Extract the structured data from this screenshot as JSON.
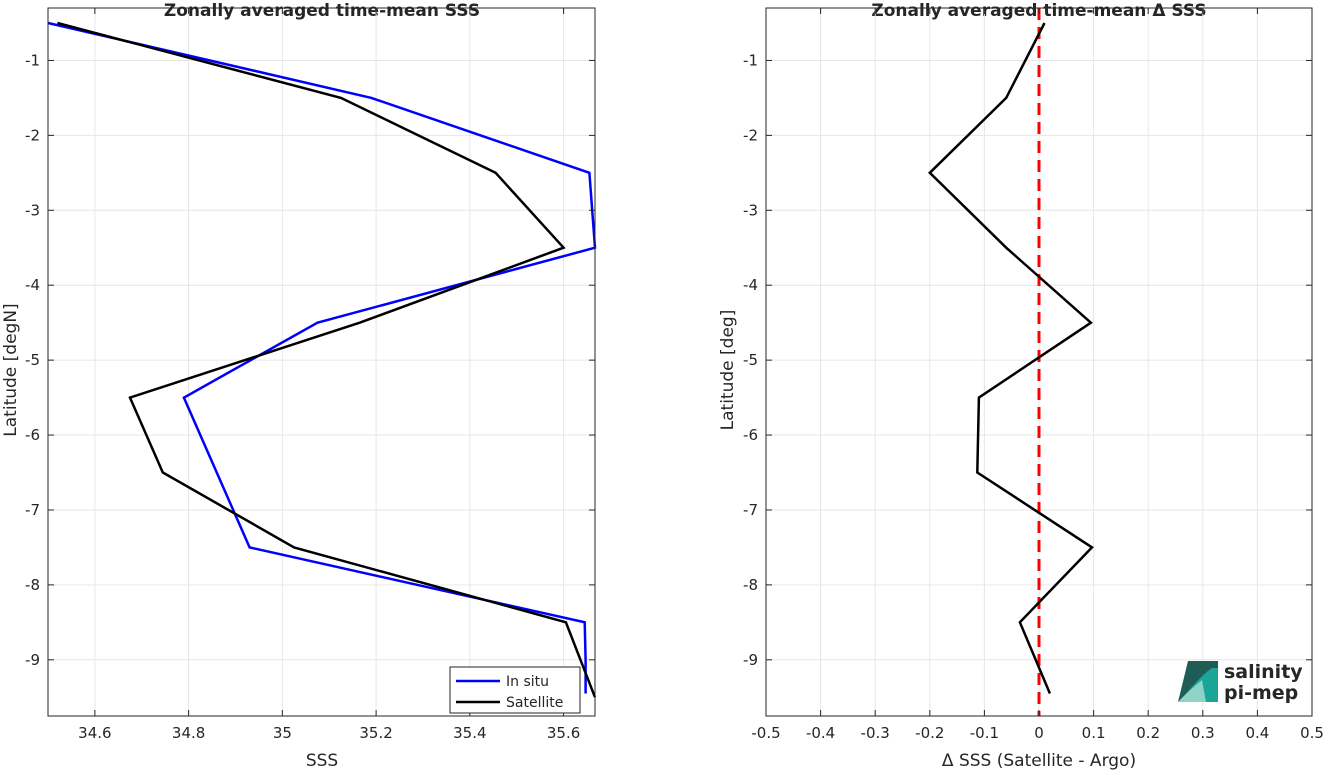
{
  "chart_data": [
    {
      "type": "line",
      "title": "Zonally averaged time-mean SSS",
      "xlabel": "SSS",
      "ylabel": "Latitude [degN]",
      "xlim": [
        34.5,
        35.667
      ],
      "ylim": [
        -9.75,
        -0.3
      ],
      "xticks": [
        "34.6",
        "34.8",
        "35",
        "35.2",
        "35.4",
        "35.6"
      ],
      "xtick_values": [
        34.6,
        34.8,
        35.0,
        35.2,
        35.4,
        35.6
      ],
      "yticks": [
        "-1",
        "-2",
        "-3",
        "-4",
        "-5",
        "-6",
        "-7",
        "-8",
        "-9"
      ],
      "ytick_values": [
        -1,
        -2,
        -3,
        -4,
        -5,
        -6,
        -7,
        -8,
        -9
      ],
      "grid": true,
      "legend_position": "bottom-right",
      "series": [
        {
          "name": "In situ",
          "color": "#0000ff",
          "x": [
            34.5,
            35.19,
            35.655,
            35.667,
            35.075,
            34.79,
            34.93,
            35.645,
            35.647,
            35.647
          ],
          "y": [
            -0.5,
            -1.5,
            -2.5,
            -3.5,
            -4.5,
            -5.5,
            -7.5,
            -8.5,
            -9.0,
            -9.45
          ]
        },
        {
          "name": "Satellite",
          "color": "#000000",
          "x": [
            34.52,
            35.125,
            35.455,
            35.6,
            35.165,
            34.675,
            34.745,
            35.025,
            35.605,
            35.667
          ],
          "y": [
            -0.5,
            -1.5,
            -2.5,
            -3.5,
            -4.5,
            -5.5,
            -6.5,
            -7.5,
            -8.5,
            -9.5
          ]
        }
      ]
    },
    {
      "type": "line",
      "title": "Zonally averaged time-mean Δ SSS",
      "xlabel": "Δ SSS (Satellite - Argo)",
      "ylabel": "Latitude [deg]",
      "xlim": [
        -0.5,
        0.5
      ],
      "ylim": [
        -9.75,
        -0.3
      ],
      "xticks": [
        "-0.5",
        "-0.4",
        "-0.3",
        "-0.2",
        "-0.1",
        "0",
        "0.1",
        "0.2",
        "0.3",
        "0.4",
        "0.5"
      ],
      "xtick_values": [
        -0.5,
        -0.4,
        -0.3,
        -0.2,
        -0.1,
        0,
        0.1,
        0.2,
        0.3,
        0.4,
        0.5
      ],
      "yticks": [
        "-1",
        "-2",
        "-3",
        "-4",
        "-5",
        "-6",
        "-7",
        "-8",
        "-9"
      ],
      "ytick_values": [
        -1,
        -2,
        -3,
        -4,
        -5,
        -6,
        -7,
        -8,
        -9
      ],
      "grid": true,
      "zero_line": {
        "x": 0,
        "color": "#ff0000",
        "style": "dashed"
      },
      "series": [
        {
          "color": "#000000",
          "x": [
            0.01,
            -0.06,
            -0.2,
            -0.06,
            0.095,
            -0.11,
            -0.113,
            0.097,
            -0.035,
            0.02
          ],
          "y": [
            -0.5,
            -1.5,
            -2.5,
            -3.5,
            -4.5,
            -5.5,
            -6.5,
            -7.5,
            -8.5,
            -9.45
          ]
        }
      ]
    }
  ],
  "logo": {
    "line1": "salinity",
    "line2": "pi-mep",
    "color_primary": "#1aa596",
    "color_dark": "#1f5c56"
  }
}
